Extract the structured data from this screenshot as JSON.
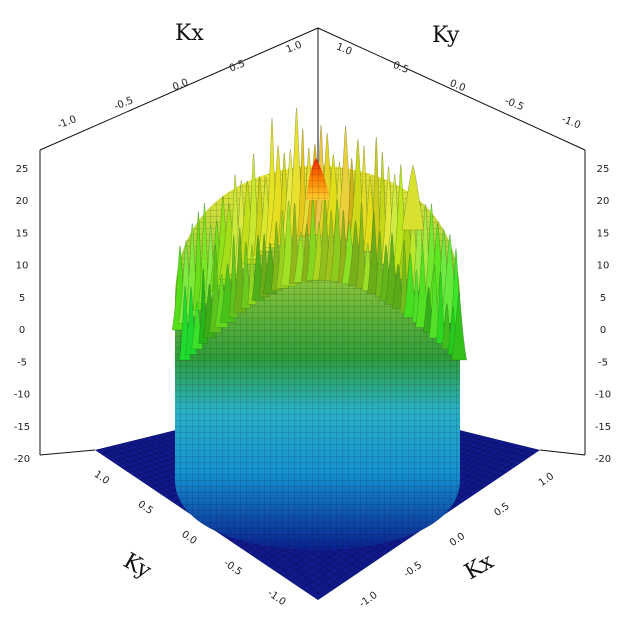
{
  "chart_data": {
    "type": "surface3d",
    "title": "",
    "axes": {
      "kx_label": "Kx",
      "ky_label": "Ky",
      "z_label": "",
      "kx_range": [
        -1.0,
        1.0
      ],
      "ky_range": [
        -1.0,
        1.0
      ],
      "z_range": [
        -20,
        25
      ]
    },
    "ticks": {
      "top_left_kx": [
        "1.0",
        "0.5",
        "0.0",
        "-0.5",
        "-1.0"
      ],
      "top_right_ky": [
        "1.0",
        "0.5",
        "0.0",
        "-0.5",
        "-1.0"
      ],
      "left_z": [
        "25",
        "20",
        "15",
        "10",
        "5",
        "0",
        "-5",
        "-10",
        "-15",
        "-20"
      ],
      "right_z": [
        "25",
        "20",
        "15",
        "10",
        "5",
        "0",
        "-5",
        "-10",
        "-15",
        "-20"
      ],
      "bottom_left_ky": [
        "1.0",
        "0.5",
        "0.0",
        "-0.5",
        "-1.0"
      ],
      "bottom_right_kx": [
        "-1.0",
        "-0.5",
        "0.0",
        "0.5",
        "1.0"
      ]
    },
    "surface": {
      "floor_value": -20,
      "plateau_radius": 0.78,
      "central_peak_value": 25,
      "colormap": [
        "#000080",
        "#00c8ff",
        "#40b040",
        "#ffff40",
        "#ff6000",
        "#e00000"
      ]
    },
    "grid": false,
    "legend": "none"
  }
}
